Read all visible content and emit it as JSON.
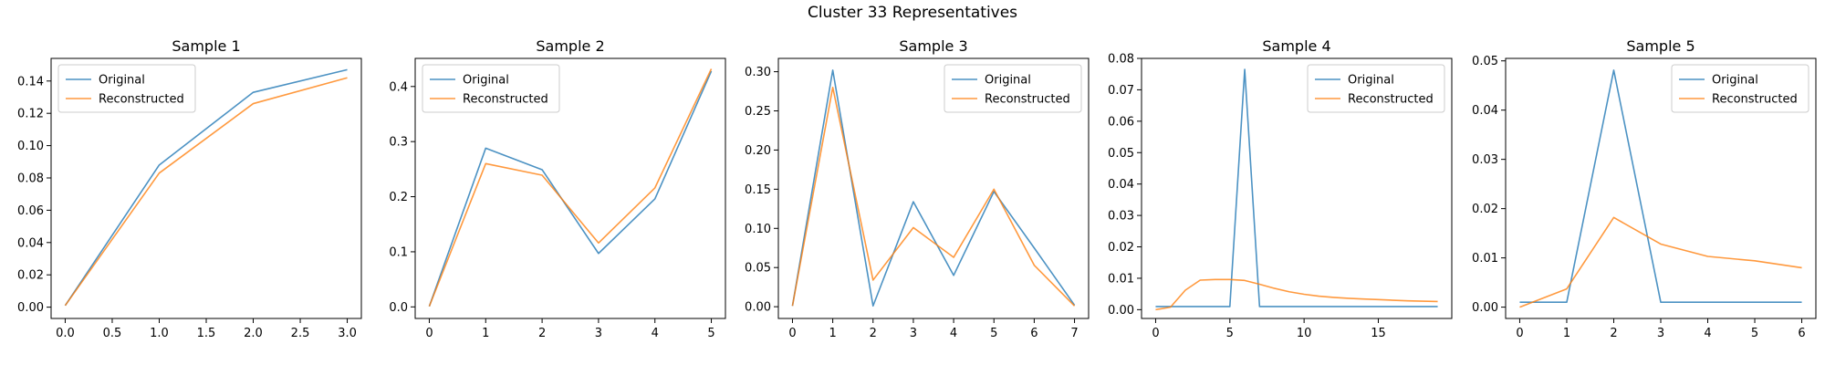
{
  "figure": {
    "title": "Cluster 33 Representatives"
  },
  "colors": {
    "original": "#1f77b4",
    "reconstructed": "#ff7f0e"
  },
  "chart_data": [
    {
      "type": "line",
      "title": "Sample 1",
      "xlim": [
        -0.15,
        3.15
      ],
      "ylim": [
        -0.007,
        0.154
      ],
      "xticks": [
        0.0,
        0.5,
        1.0,
        1.5,
        2.0,
        2.5,
        3.0
      ],
      "xtick_labels": [
        "0.0",
        "0.5",
        "1.0",
        "1.5",
        "2.0",
        "2.5",
        "3.0"
      ],
      "yticks": [
        0.0,
        0.02,
        0.04,
        0.06,
        0.08,
        0.1,
        0.12,
        0.14
      ],
      "ytick_labels": [
        "0.00",
        "0.02",
        "0.04",
        "0.06",
        "0.08",
        "0.10",
        "0.12",
        "0.14"
      ],
      "legend": "top-left",
      "series": [
        {
          "name": "Original",
          "x": [
            0,
            1,
            2,
            3
          ],
          "y": [
            0.001,
            0.088,
            0.133,
            0.147
          ]
        },
        {
          "name": "Reconstructed",
          "x": [
            0,
            1,
            2,
            3
          ],
          "y": [
            0.001,
            0.083,
            0.126,
            0.142
          ]
        }
      ]
    },
    {
      "type": "line",
      "title": "Sample 2",
      "xlim": [
        -0.25,
        5.25
      ],
      "ylim": [
        -0.021,
        0.451
      ],
      "xticks": [
        0,
        1,
        2,
        3,
        4,
        5
      ],
      "xtick_labels": [
        "0",
        "1",
        "2",
        "3",
        "4",
        "5"
      ],
      "yticks": [
        0.0,
        0.1,
        0.2,
        0.3,
        0.4
      ],
      "ytick_labels": [
        "0.0",
        "0.1",
        "0.2",
        "0.3",
        "0.4"
      ],
      "legend": "top-left",
      "series": [
        {
          "name": "Original",
          "x": [
            0,
            1,
            2,
            3,
            4,
            5
          ],
          "y": [
            0.001,
            0.288,
            0.249,
            0.097,
            0.196,
            0.428
          ]
        },
        {
          "name": "Reconstructed",
          "x": [
            0,
            1,
            2,
            3,
            4,
            5
          ],
          "y": [
            0.001,
            0.26,
            0.239,
            0.116,
            0.216,
            0.432
          ]
        }
      ]
    },
    {
      "type": "line",
      "title": "Sample 3",
      "xlim": [
        -0.35,
        7.35
      ],
      "ylim": [
        -0.015,
        0.317
      ],
      "xticks": [
        0,
        1,
        2,
        3,
        4,
        5,
        6,
        7
      ],
      "xtick_labels": [
        "0",
        "1",
        "2",
        "3",
        "4",
        "5",
        "6",
        "7"
      ],
      "yticks": [
        0.0,
        0.05,
        0.1,
        0.15,
        0.2,
        0.25,
        0.3
      ],
      "ytick_labels": [
        "0.00",
        "0.05",
        "0.10",
        "0.15",
        "0.20",
        "0.25",
        "0.30"
      ],
      "legend": "top-right",
      "series": [
        {
          "name": "Original",
          "x": [
            0,
            1,
            2,
            3,
            4,
            5,
            6,
            7
          ],
          "y": [
            0.001,
            0.302,
            0.001,
            0.134,
            0.04,
            0.147,
            0.075,
            0.002
          ]
        },
        {
          "name": "Reconstructed",
          "x": [
            0,
            1,
            2,
            3,
            4,
            5,
            6,
            7
          ],
          "y": [
            0.001,
            0.28,
            0.034,
            0.101,
            0.063,
            0.15,
            0.053,
            0.001
          ]
        }
      ]
    },
    {
      "type": "line",
      "title": "Sample 4",
      "xlim": [
        -0.95,
        19.95
      ],
      "ylim": [
        -0.0028,
        0.08
      ],
      "xticks": [
        0,
        5,
        10,
        15
      ],
      "xtick_labels": [
        "0",
        "5",
        "10",
        "15"
      ],
      "yticks": [
        0.0,
        0.01,
        0.02,
        0.03,
        0.04,
        0.05,
        0.06,
        0.07,
        0.08
      ],
      "ytick_labels": [
        "0.00",
        "0.01",
        "0.02",
        "0.03",
        "0.04",
        "0.05",
        "0.06",
        "0.07",
        "0.08"
      ],
      "legend": "top-right",
      "series": [
        {
          "name": "Original",
          "x": [
            0,
            1,
            2,
            3,
            4,
            5,
            6,
            7,
            8,
            9,
            10,
            11,
            12,
            13,
            14,
            15,
            16,
            17,
            18,
            19
          ],
          "y": [
            0.001,
            0.001,
            0.001,
            0.001,
            0.001,
            0.001,
            0.0765,
            0.001,
            0.001,
            0.001,
            0.001,
            0.001,
            0.001,
            0.001,
            0.001,
            0.001,
            0.001,
            0.001,
            0.001,
            0.001
          ]
        },
        {
          "name": "Reconstructed",
          "x": [
            0,
            1,
            2,
            3,
            4,
            5,
            6,
            7,
            8,
            9,
            10,
            11,
            12,
            13,
            14,
            15,
            16,
            17,
            18,
            19
          ],
          "y": [
            0.0,
            0.0008,
            0.0062,
            0.0094,
            0.0096,
            0.0096,
            0.0093,
            0.0081,
            0.0068,
            0.0057,
            0.0049,
            0.0043,
            0.0039,
            0.0036,
            0.0034,
            0.0032,
            0.003,
            0.0028,
            0.0027,
            0.0026
          ]
        }
      ]
    },
    {
      "type": "line",
      "title": "Sample 5",
      "xlim": [
        -0.3,
        6.3
      ],
      "ylim": [
        -0.0023,
        0.0505
      ],
      "xticks": [
        0,
        1,
        2,
        3,
        4,
        5,
        6
      ],
      "xtick_labels": [
        "0",
        "1",
        "2",
        "3",
        "4",
        "5",
        "6"
      ],
      "yticks": [
        0.0,
        0.01,
        0.02,
        0.03,
        0.04,
        0.05
      ],
      "ytick_labels": [
        "0.00",
        "0.01",
        "0.02",
        "0.03",
        "0.04",
        "0.05"
      ],
      "legend": "top-right",
      "series": [
        {
          "name": "Original",
          "x": [
            0,
            1,
            2,
            3,
            4,
            5,
            6
          ],
          "y": [
            0.001,
            0.001,
            0.0481,
            0.001,
            0.001,
            0.001,
            0.001
          ]
        },
        {
          "name": "Reconstructed",
          "x": [
            0,
            1,
            2,
            3,
            4,
            5,
            6
          ],
          "y": [
            0.0,
            0.0037,
            0.0182,
            0.0128,
            0.0103,
            0.0094,
            0.008
          ]
        }
      ]
    }
  ]
}
